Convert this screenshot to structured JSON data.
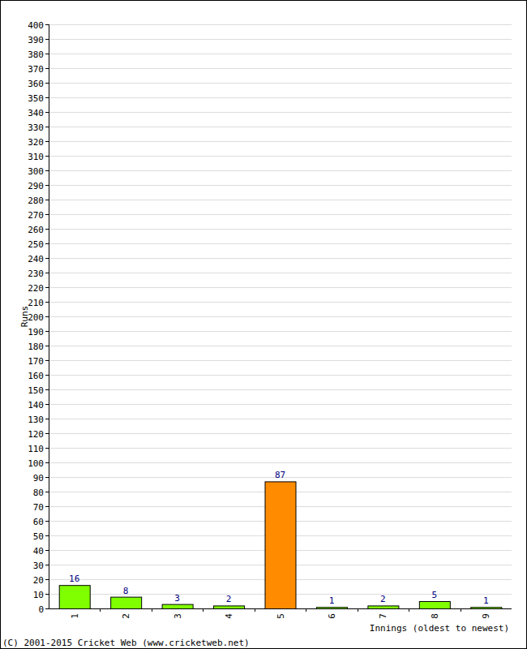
{
  "chart_data": {
    "type": "bar",
    "x_label": "Innings (oldest to newest)",
    "y_label": "Runs",
    "annotations": [
      "(C) 2001-2015 Cricket Web (www.cricketweb.net)"
    ],
    "categories": [
      "1",
      "2",
      "3",
      "4",
      "5",
      "6",
      "7",
      "8",
      "9"
    ],
    "values": [
      16,
      8,
      3,
      2,
      87,
      1,
      2,
      5,
      1
    ],
    "colors": [
      "#80ff00",
      "#80ff00",
      "#80ff00",
      "#80ff00",
      "#ff8c00",
      "#80ff00",
      "#80ff00",
      "#80ff00",
      "#80ff00"
    ],
    "ylim": [
      0,
      400
    ],
    "yticks": [
      0,
      10,
      20,
      30,
      40,
      50,
      60,
      70,
      80,
      90,
      100,
      110,
      120,
      130,
      140,
      150,
      160,
      170,
      180,
      190,
      200,
      210,
      220,
      230,
      240,
      250,
      260,
      270,
      280,
      290,
      300,
      310,
      320,
      330,
      340,
      350,
      360,
      370,
      380,
      390,
      400
    ],
    "grid": true,
    "data_labels": true
  }
}
